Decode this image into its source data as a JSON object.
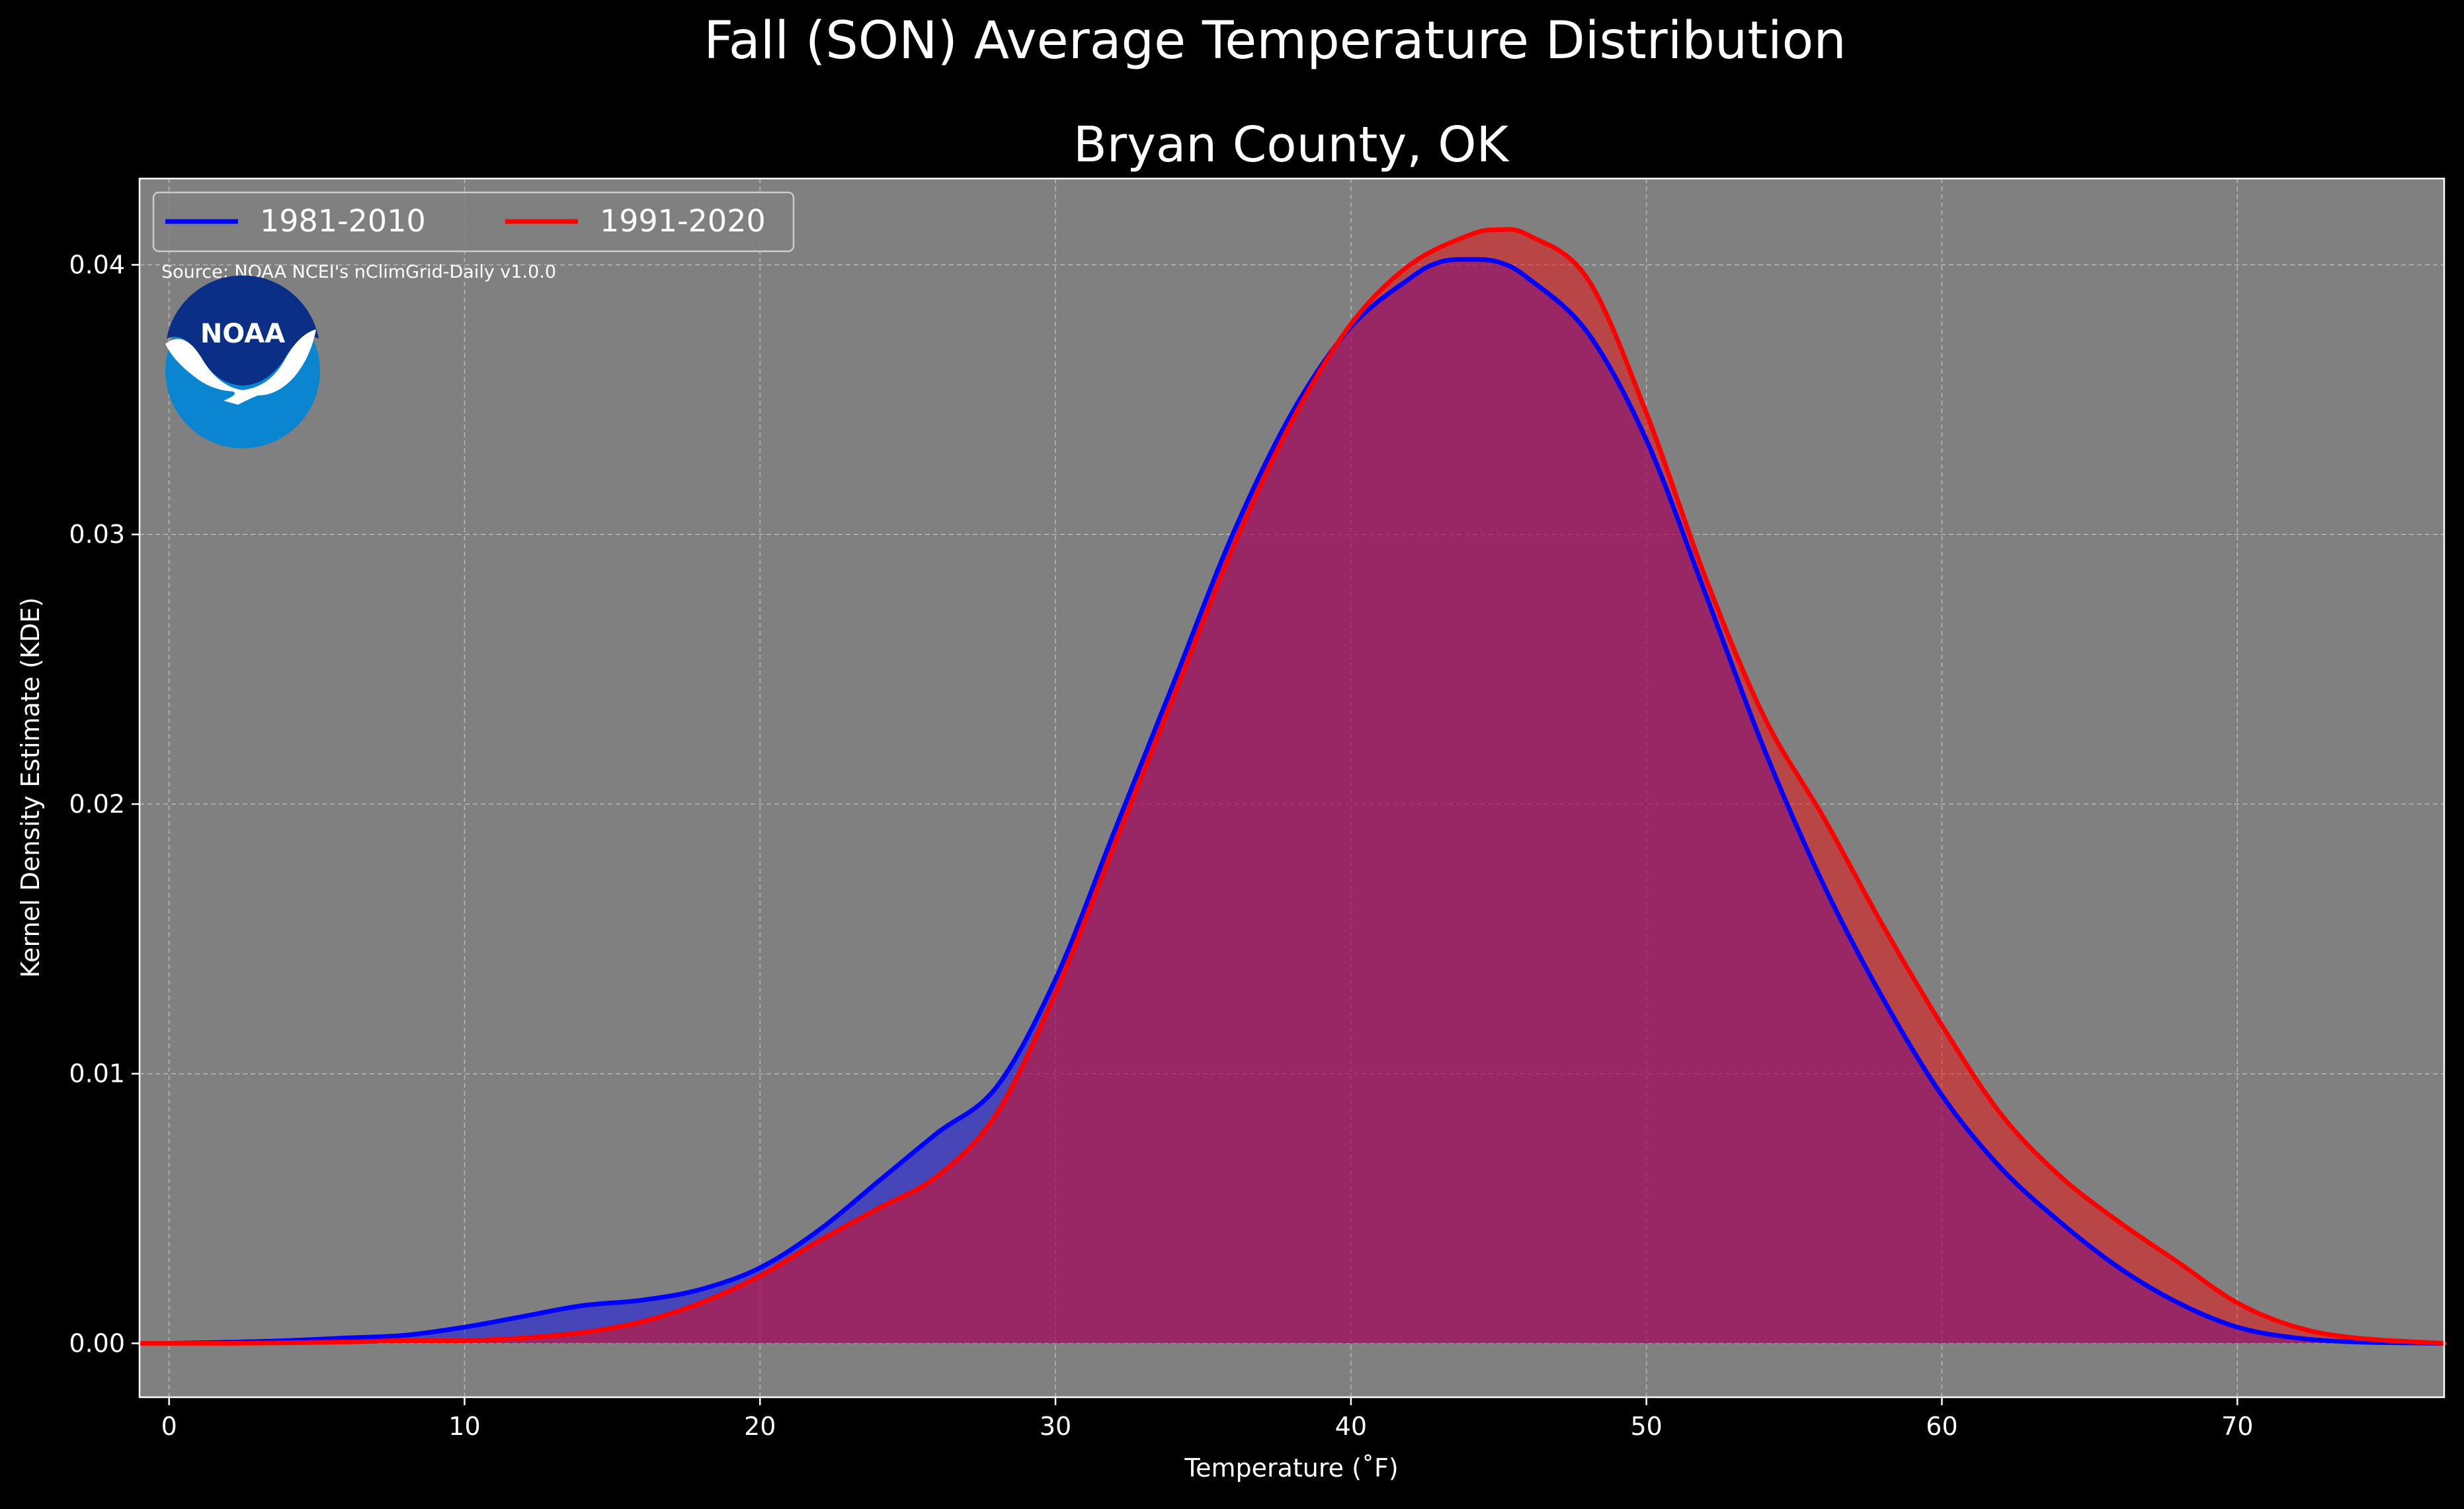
{
  "figure": {
    "suptitle": "Fall (SON) Average Temperature Distribution",
    "background": "#000000",
    "text_color": "#ffffff"
  },
  "chart_data": {
    "type": "area",
    "title": "Bryan County, OK",
    "xlabel": "Temperature ($^\\circ$F)",
    "xlabel_display": "Temperature (˚F)",
    "ylabel": "Kernel Density Estimate (KDE)",
    "xlim": [
      -1,
      77
    ],
    "ylim": [
      -0.002,
      0.0432
    ],
    "x_ticks": [
      0,
      10,
      20,
      30,
      40,
      50,
      60,
      70
    ],
    "y_ticks": [
      0.0,
      0.01,
      0.02,
      0.03,
      0.04
    ],
    "y_tick_labels": [
      "0.00",
      "0.01",
      "0.02",
      "0.03",
      "0.04"
    ],
    "grid": true,
    "plot_background": "#808080",
    "legend_position": "top-left",
    "annotation": "Source: NOAA NCEI's nClimGrid-Daily v1.0.0",
    "logo_label": "NOAA",
    "series": [
      {
        "name": "1981-2010",
        "color": "#0000ff",
        "fill_color": "#0000ff",
        "x": [
          -1,
          0,
          2,
          4,
          6,
          8,
          10,
          12,
          14,
          16,
          18,
          20,
          22,
          24,
          26,
          28,
          30,
          32,
          34,
          36,
          38,
          40,
          42,
          43,
          44,
          45,
          46,
          48,
          50,
          52,
          54,
          56,
          58,
          60,
          62,
          64,
          66,
          68,
          70,
          72,
          74,
          77
        ],
        "values": [
          0.0,
          0.0,
          4e-05,
          0.0001,
          0.0002,
          0.0003,
          0.0006,
          0.001,
          0.0014,
          0.0016,
          0.002,
          0.0028,
          0.0042,
          0.006,
          0.0078,
          0.0095,
          0.0135,
          0.019,
          0.0245,
          0.03,
          0.0345,
          0.0377,
          0.0395,
          0.0401,
          0.0402,
          0.0401,
          0.0395,
          0.0375,
          0.0335,
          0.0278,
          0.022,
          0.017,
          0.0128,
          0.0092,
          0.0065,
          0.0045,
          0.0028,
          0.0015,
          0.0006,
          0.0002,
          5e-05,
          0.0
        ]
      },
      {
        "name": "1991-2020",
        "color": "#ff0000",
        "fill_color": "#ff0000",
        "x": [
          -1,
          0,
          2,
          4,
          6,
          8,
          10,
          12,
          14,
          16,
          18,
          20,
          22,
          24,
          26,
          28,
          30,
          32,
          34,
          36,
          38,
          40,
          42,
          44,
          45,
          46,
          48,
          50,
          52,
          54,
          56,
          58,
          60,
          62,
          64,
          66,
          68,
          70,
          72,
          74,
          77
        ],
        "values": [
          0.0,
          0.0,
          0.0,
          2e-05,
          5e-05,
          0.0001,
          0.0001,
          0.0002,
          0.0004,
          0.0008,
          0.0015,
          0.0025,
          0.0038,
          0.005,
          0.0062,
          0.0085,
          0.013,
          0.0185,
          0.024,
          0.0295,
          0.0342,
          0.0378,
          0.04,
          0.0411,
          0.0413,
          0.0411,
          0.0395,
          0.0345,
          0.0284,
          0.0232,
          0.0195,
          0.0155,
          0.0118,
          0.0085,
          0.0062,
          0.0045,
          0.003,
          0.0015,
          0.0006,
          0.0002,
          0.0
        ]
      }
    ]
  }
}
